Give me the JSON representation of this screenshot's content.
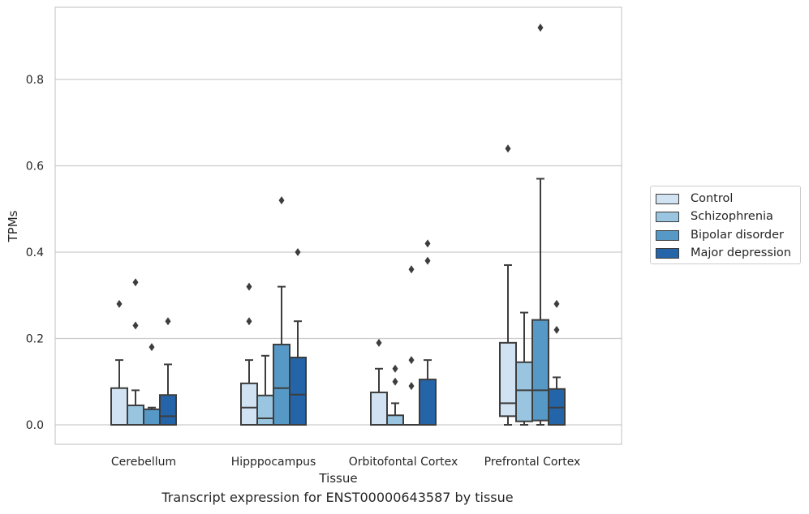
{
  "chart_data": {
    "type": "box",
    "title": "Transcript expression for ENST00000643587 by tissue",
    "xlabel": "Tissue",
    "ylabel": "TPMs",
    "ylim": [
      -0.045,
      0.965
    ],
    "yticks": [
      "0.0",
      "0.2",
      "0.4",
      "0.6",
      "0.8"
    ],
    "ytick_values": [
      0.0,
      0.2,
      0.4,
      0.6,
      0.8
    ],
    "grid": true,
    "legend_position": "right",
    "categories": [
      "Cerebellum",
      "Hipppocampus",
      "Orbitofontal Cortex",
      "Prefrontal Cortex"
    ],
    "series": [
      {
        "name": "Control",
        "color": "#d1e2f2",
        "boxes": [
          {
            "min": 0.0,
            "q1": 0.0,
            "median": 0.0,
            "q3": 0.085,
            "max": 0.15,
            "outliers": [
              0.28
            ]
          },
          {
            "min": 0.0,
            "q1": 0.0,
            "median": 0.04,
            "q3": 0.096,
            "max": 0.15,
            "outliers": [
              0.24,
              0.32
            ]
          },
          {
            "min": 0.0,
            "q1": 0.0,
            "median": 0.0,
            "q3": 0.075,
            "max": 0.13,
            "outliers": [
              0.19
            ]
          },
          {
            "min": 0.0,
            "q1": 0.02,
            "median": 0.05,
            "q3": 0.19,
            "max": 0.37,
            "outliers": [
              0.64
            ]
          }
        ]
      },
      {
        "name": "Schizophrenia",
        "color": "#9ac5e0",
        "boxes": [
          {
            "min": 0.0,
            "q1": 0.0,
            "median": 0.0,
            "q3": 0.045,
            "max": 0.08,
            "outliers": [
              0.23,
              0.33
            ]
          },
          {
            "min": 0.0,
            "q1": 0.0,
            "median": 0.015,
            "q3": 0.068,
            "max": 0.16,
            "outliers": []
          },
          {
            "min": 0.0,
            "q1": 0.0,
            "median": 0.0,
            "q3": 0.022,
            "max": 0.05,
            "outliers": [
              0.1,
              0.13
            ]
          },
          {
            "min": 0.0,
            "q1": 0.008,
            "median": 0.08,
            "q3": 0.145,
            "max": 0.26,
            "outliers": []
          }
        ]
      },
      {
        "name": "Bipolar disorder",
        "color": "#5699c6",
        "boxes": [
          {
            "min": 0.0,
            "q1": 0.0,
            "median": 0.0,
            "q3": 0.036,
            "max": 0.04,
            "outliers": [
              0.18
            ]
          },
          {
            "min": 0.0,
            "q1": 0.0,
            "median": 0.085,
            "q3": 0.186,
            "max": 0.32,
            "outliers": [
              0.52
            ]
          },
          {
            "min": 0.0,
            "q1": 0.0,
            "median": 0.0,
            "q3": 0.0,
            "max": 0.0,
            "outliers": [
              0.09,
              0.15,
              0.36
            ]
          },
          {
            "min": 0.0,
            "q1": 0.01,
            "median": 0.08,
            "q3": 0.243,
            "max": 0.57,
            "outliers": [
              0.92
            ]
          }
        ]
      },
      {
        "name": "Major depression",
        "color": "#2464a8",
        "boxes": [
          {
            "min": 0.0,
            "q1": 0.0,
            "median": 0.02,
            "q3": 0.069,
            "max": 0.14,
            "outliers": [
              0.24
            ]
          },
          {
            "min": 0.0,
            "q1": 0.0,
            "median": 0.07,
            "q3": 0.156,
            "max": 0.24,
            "outliers": [
              0.4
            ]
          },
          {
            "min": 0.0,
            "q1": 0.0,
            "median": 0.0,
            "q3": 0.105,
            "max": 0.15,
            "outliers": [
              0.38,
              0.42
            ]
          },
          {
            "min": 0.0,
            "q1": 0.0,
            "median": 0.04,
            "q3": 0.083,
            "max": 0.11,
            "outliers": [
              0.22,
              0.28
            ]
          }
        ]
      }
    ]
  }
}
